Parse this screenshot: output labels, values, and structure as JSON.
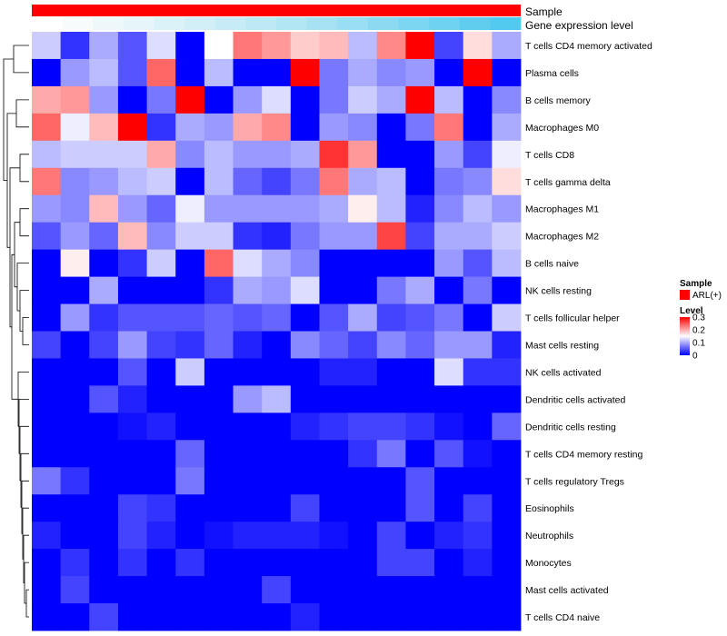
{
  "chart_data": {
    "type": "heatmap",
    "column_annotations": [
      {
        "label": "Sample",
        "colors": [
          "#ff0000"
        ]
      },
      {
        "label": "Gene expression level",
        "colors": [
          "#ffffff",
          "#f7fbfc",
          "#eef8fb",
          "#e5f5fa",
          "#dcf2f9",
          "#d2eff8",
          "#c8ecf7",
          "#bde9f6",
          "#b2e6f5",
          "#a6e2f4",
          "#99def3",
          "#8bdaf2",
          "#7dd6f1",
          "#6ed2f0",
          "#60cdef",
          "#52c9ee"
        ]
      }
    ],
    "rows": [
      "T cells CD4 memory activated",
      "Plasma cells",
      "B cells memory",
      "Macrophages M0",
      "T cells CD8",
      "T cells gamma delta",
      "Macrophages M1",
      "Macrophages M2",
      "B cells naive",
      "NK cells resting",
      "T cells follicular helper",
      "Mast cells resting",
      "NK cells activated",
      "Dendritic cells activated",
      "Dendritic cells resting",
      "T cells CD4 memory resting",
      "T cells regulatory  Tregs",
      "Eosinophils",
      "Neutrophils",
      "Monocytes",
      "Mast cells activated",
      "T cells CD4 naive"
    ],
    "values": [
      [
        0.12,
        0.03,
        0.1,
        0.05,
        0.13,
        0.0,
        0.15,
        0.23,
        0.21,
        0.18,
        0.19,
        0.11,
        0.22,
        0.3,
        0.04,
        0.17,
        0.1
      ],
      [
        0.0,
        0.09,
        0.11,
        0.05,
        0.24,
        0.0,
        0.11,
        0.0,
        0.0,
        0.3,
        0.07,
        0.1,
        0.08,
        0.09,
        0.0,
        0.3,
        0.0
      ],
      [
        0.2,
        0.21,
        0.09,
        0.0,
        0.07,
        0.3,
        0.0,
        0.09,
        0.13,
        0.0,
        0.07,
        0.12,
        0.1,
        0.3,
        0.11,
        0.0,
        0.08
      ],
      [
        0.24,
        0.14,
        0.19,
        0.3,
        0.03,
        0.1,
        0.09,
        0.2,
        0.22,
        0.0,
        0.09,
        0.08,
        0.0,
        0.07,
        0.23,
        0.0,
        0.1
      ],
      [
        0.11,
        0.12,
        0.12,
        0.12,
        0.2,
        0.08,
        0.11,
        0.09,
        0.09,
        0.1,
        0.27,
        0.21,
        0.0,
        0.0,
        0.09,
        0.04,
        0.14
      ],
      [
        0.23,
        0.08,
        0.09,
        0.11,
        0.12,
        0.0,
        0.11,
        0.06,
        0.04,
        0.07,
        0.23,
        0.1,
        0.11,
        0.0,
        0.07,
        0.08,
        0.17
      ],
      [
        0.09,
        0.08,
        0.19,
        0.09,
        0.06,
        0.14,
        0.09,
        0.09,
        0.09,
        0.09,
        0.1,
        0.16,
        0.11,
        0.02,
        0.08,
        0.11,
        0.09
      ],
      [
        0.05,
        0.09,
        0.06,
        0.19,
        0.08,
        0.12,
        0.12,
        0.03,
        0.02,
        0.07,
        0.09,
        0.09,
        0.26,
        0.04,
        0.1,
        0.1,
        0.12
      ],
      [
        0.0,
        0.16,
        0.0,
        0.03,
        0.12,
        0.0,
        0.24,
        0.13,
        0.1,
        0.08,
        0.0,
        0.0,
        0.0,
        0.0,
        0.09,
        0.05,
        0.11
      ],
      [
        0.0,
        0.0,
        0.1,
        0.0,
        0.0,
        0.0,
        0.03,
        0.1,
        0.09,
        0.13,
        0.0,
        0.0,
        0.07,
        0.1,
        0.0,
        0.07,
        0.0
      ],
      [
        0.0,
        0.09,
        0.03,
        0.05,
        0.05,
        0.05,
        0.06,
        0.05,
        0.06,
        0.0,
        0.05,
        0.1,
        0.04,
        0.05,
        0.07,
        0.0,
        0.12
      ],
      [
        0.04,
        0.0,
        0.04,
        0.09,
        0.04,
        0.03,
        0.06,
        0.02,
        0.0,
        0.08,
        0.06,
        0.04,
        0.08,
        0.06,
        0.09,
        0.09,
        0.02
      ],
      [
        0.0,
        0.0,
        0.0,
        0.05,
        0.0,
        0.12,
        0.0,
        0.0,
        0.0,
        0.0,
        0.02,
        0.02,
        0.0,
        0.0,
        0.13,
        0.03,
        0.03
      ],
      [
        0.0,
        0.0,
        0.05,
        0.02,
        0.0,
        0.0,
        0.0,
        0.09,
        0.11,
        0.0,
        0.0,
        0.0,
        0.0,
        0.0,
        0.0,
        0.0,
        0.0
      ],
      [
        0.0,
        0.0,
        0.0,
        0.01,
        0.02,
        0.0,
        0.0,
        0.0,
        0.0,
        0.02,
        0.03,
        0.04,
        0.04,
        0.03,
        0.01,
        0.0,
        0.06
      ],
      [
        0.0,
        0.0,
        0.0,
        0.0,
        0.0,
        0.06,
        0.0,
        0.0,
        0.0,
        0.0,
        0.0,
        0.03,
        0.07,
        0.0,
        0.05,
        0.01,
        0.0
      ],
      [
        0.07,
        0.03,
        0.0,
        0.0,
        0.0,
        0.07,
        0.0,
        0.0,
        0.0,
        0.0,
        0.0,
        0.0,
        0.0,
        0.05,
        0.0,
        0.0,
        0.0
      ],
      [
        0.0,
        0.0,
        0.0,
        0.04,
        0.03,
        0.0,
        0.0,
        0.0,
        0.0,
        0.04,
        0.0,
        0.0,
        0.0,
        0.05,
        0.0,
        0.04,
        0.0
      ],
      [
        0.02,
        0.0,
        0.0,
        0.04,
        0.02,
        0.0,
        0.01,
        0.02,
        0.02,
        0.02,
        0.01,
        0.0,
        0.04,
        0.0,
        0.02,
        0.03,
        0.0
      ],
      [
        0.0,
        0.03,
        0.0,
        0.03,
        0.0,
        0.03,
        0.0,
        0.0,
        0.0,
        0.0,
        0.0,
        0.0,
        0.04,
        0.04,
        0.0,
        0.02,
        0.0
      ],
      [
        0.0,
        0.04,
        0.0,
        0.0,
        0.0,
        0.0,
        0.0,
        0.0,
        0.04,
        0.0,
        0.0,
        0.0,
        0.0,
        0.0,
        0.0,
        0.0,
        0.0
      ],
      [
        0.0,
        0.0,
        0.04,
        0.0,
        0.0,
        0.0,
        0.0,
        0.0,
        0.0,
        0.02,
        0.0,
        0.0,
        0.0,
        0.0,
        0.0,
        0.0,
        0.0
      ]
    ],
    "color_scale": {
      "min": 0,
      "mid": 0.15,
      "max": 0.3,
      "low_color": "#0000ff",
      "mid_color": "#ffffff",
      "high_color": "#ff0000"
    },
    "legend": {
      "sample_title": "Sample",
      "sample_entry": "ARL(+)",
      "sample_color": "#ff0000",
      "level_title": "Level",
      "level_ticks": [
        "0.3",
        "0.2",
        "0.1",
        "0"
      ],
      "level_tick_values": [
        0.3,
        0.2,
        0.1,
        0
      ],
      "placement": "right"
    },
    "dendrogram": "row clustering, left side"
  }
}
